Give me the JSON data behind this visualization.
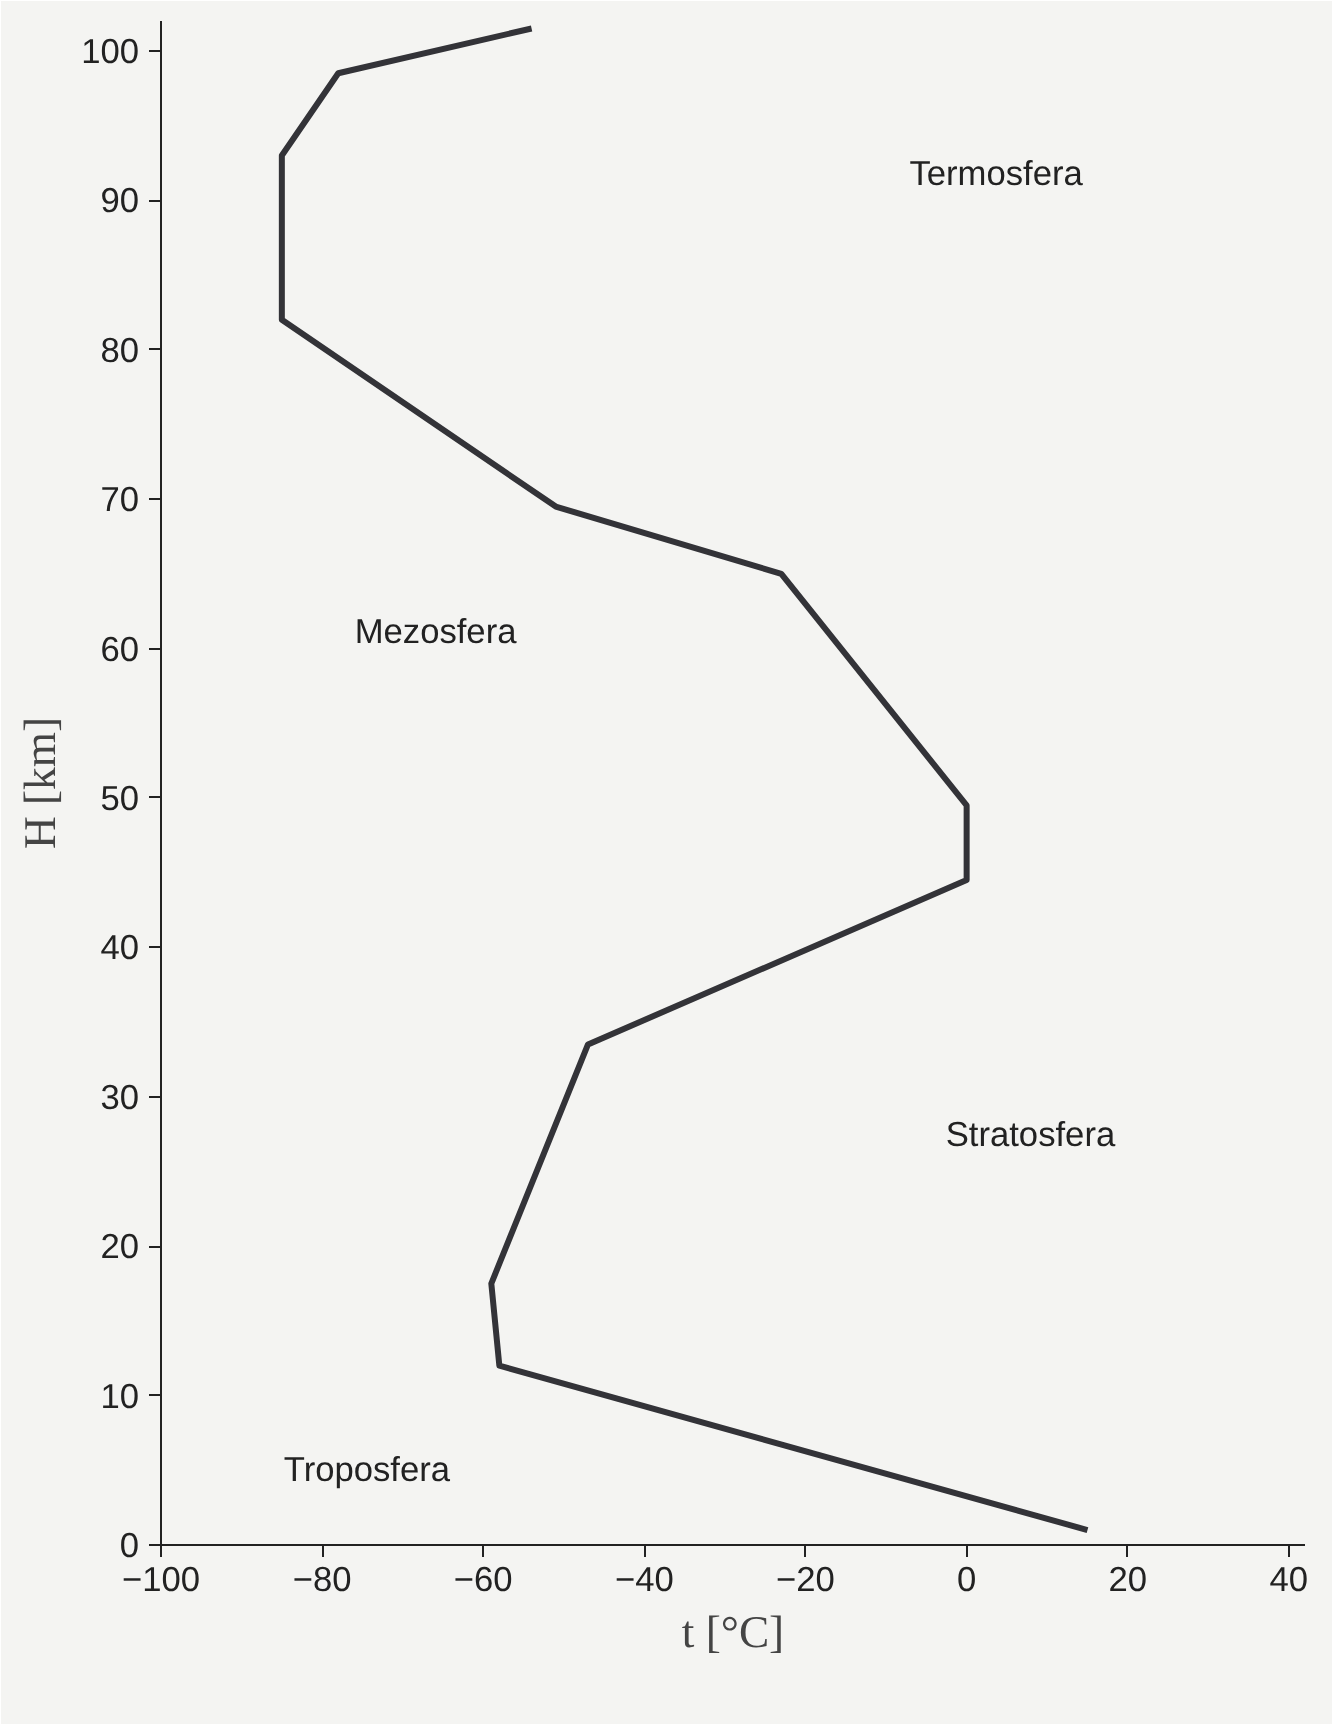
{
  "chart_data": {
    "type": "line",
    "xlabel": "t [°C]",
    "ylabel": "H [km]",
    "x": [
      15,
      -58,
      -59,
      -47,
      0,
      0,
      -23,
      -51,
      -85,
      -85,
      -78,
      -54
    ],
    "series": [
      {
        "color": "#333338",
        "values": [
          1,
          12,
          17.5,
          33.5,
          44.5,
          49.5,
          65,
          69.5,
          82,
          93,
          98.5,
          101.5
        ]
      }
    ],
    "xlim": [
      -100,
      42
    ],
    "ylim": [
      0,
      102
    ],
    "xticks": [
      -100,
      -80,
      -60,
      -40,
      -20,
      0,
      20,
      40
    ],
    "yticks": [
      0,
      10,
      20,
      30,
      40,
      50,
      60,
      70,
      80,
      90,
      100
    ],
    "grid": false,
    "marker": "none",
    "line_style": "solid",
    "annotations": [
      "Termosfera",
      "Mezosfera",
      "Stratosfera",
      "Troposfera"
    ]
  }
}
